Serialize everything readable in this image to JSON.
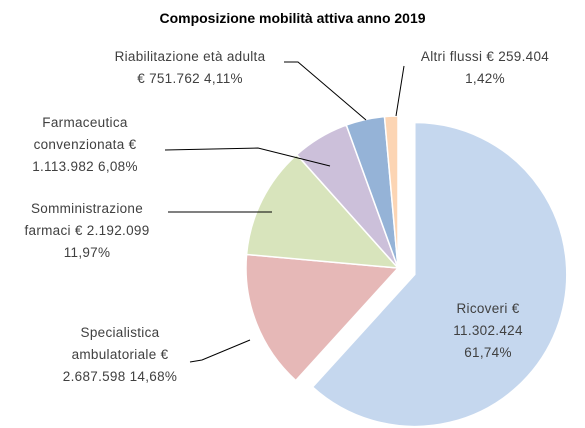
{
  "chart_data": {
    "type": "pie",
    "title": "Composizione mobilità attiva anno 2019",
    "currency": "€",
    "categories": [
      "Ricoveri",
      "Specialistica ambulatoriale",
      "Somministrazione farmaci",
      "Farmaceutica convenzionata",
      "Riabilitazione età adulta",
      "Altri flussi"
    ],
    "values": [
      11302424,
      2687598,
      2192099,
      1113982,
      751762,
      259404
    ],
    "value_labels": [
      "11.302.424",
      "2.687.598",
      "2.192.099",
      "1.113.982",
      "751.762",
      "259.404"
    ],
    "percentages": [
      61.74,
      14.68,
      11.97,
      6.08,
      4.11,
      1.42
    ],
    "percentage_labels": [
      "61,74%",
      "14,68%",
      "11,97%",
      "6,08%",
      "4,11%",
      "1,42%"
    ],
    "colors": [
      "#c5d7ee",
      "#e6b8b7",
      "#d8e4bc",
      "#ccc0da",
      "#95b3d7",
      "#fcd5b4"
    ],
    "exploded": [
      0
    ]
  }
}
